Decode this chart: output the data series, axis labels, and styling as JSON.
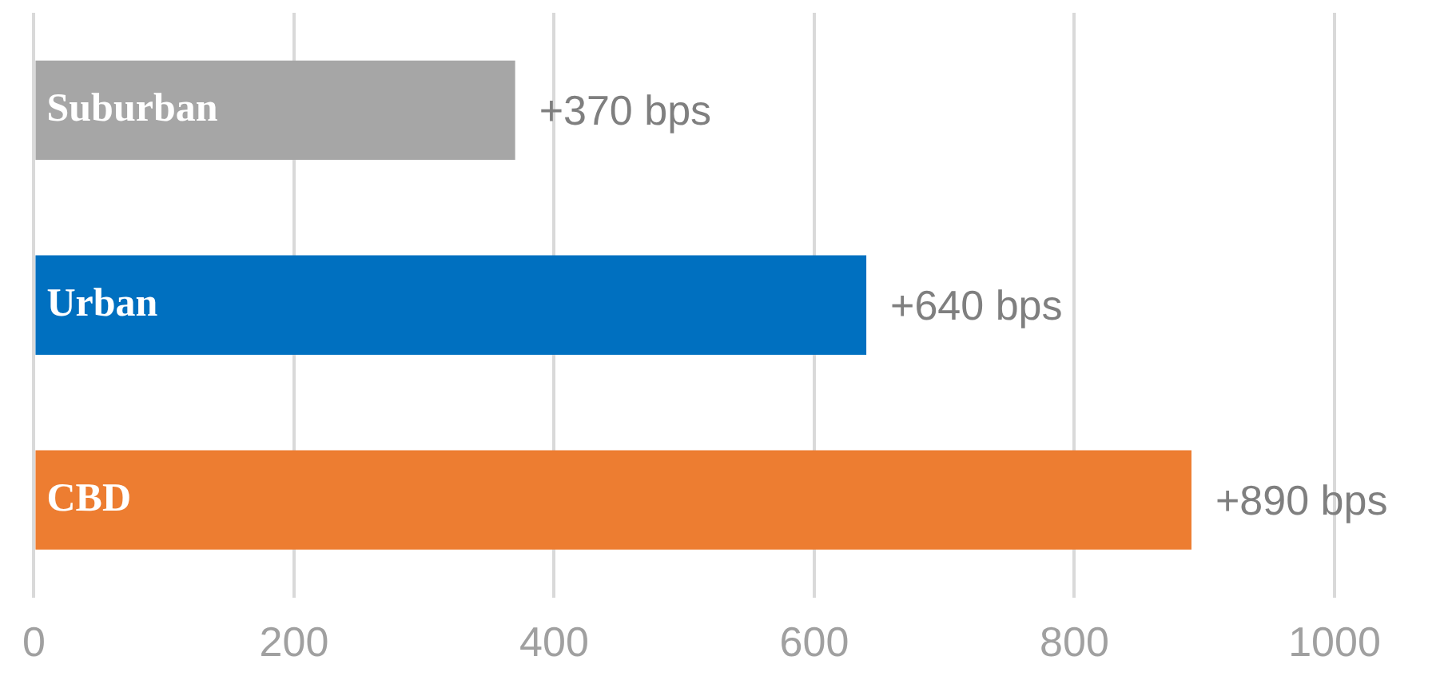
{
  "chart_data": {
    "type": "bar",
    "orientation": "horizontal",
    "categories": [
      "Suburban",
      "Urban",
      "CBD"
    ],
    "values": [
      370,
      640,
      890
    ],
    "colors": [
      "#a6a6a6",
      "#0070c0",
      "#ed7d31"
    ],
    "value_labels": [
      "+370 bps",
      "+640 bps",
      "+890 bps"
    ],
    "xlim": [
      0,
      1000
    ],
    "xticks": [
      0,
      200,
      400,
      600,
      800,
      1000
    ],
    "grid": "x",
    "legend": false
  }
}
